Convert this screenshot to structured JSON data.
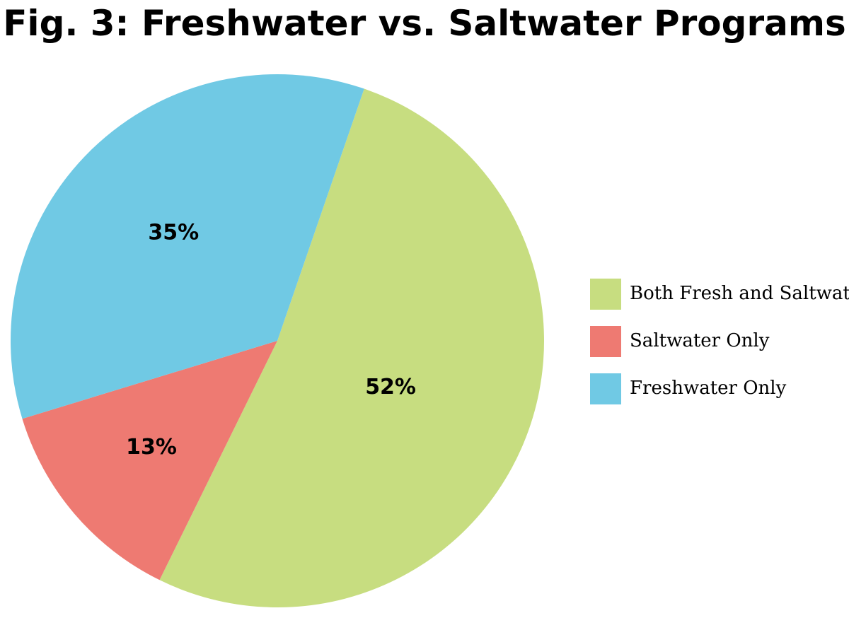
{
  "chart_data": {
    "type": "pie",
    "title": "Fig. 3: Freshwater vs. Saltwater Programs",
    "slices": [
      {
        "label": "Both Fresh and Saltwater",
        "value": 52,
        "display": "52%",
        "color": "#c7dd80"
      },
      {
        "label": "Saltwater Only",
        "value": 13,
        "display": "13%",
        "color": "#ee7a72"
      },
      {
        "label": "Freshwater Only",
        "value": 35,
        "display": "35%",
        "color": "#70c9e4"
      }
    ],
    "legend": {
      "placement": "right",
      "items": [
        "Both Fresh and Saltwater",
        "Saltwater Only",
        "Freshwater Only"
      ]
    }
  }
}
